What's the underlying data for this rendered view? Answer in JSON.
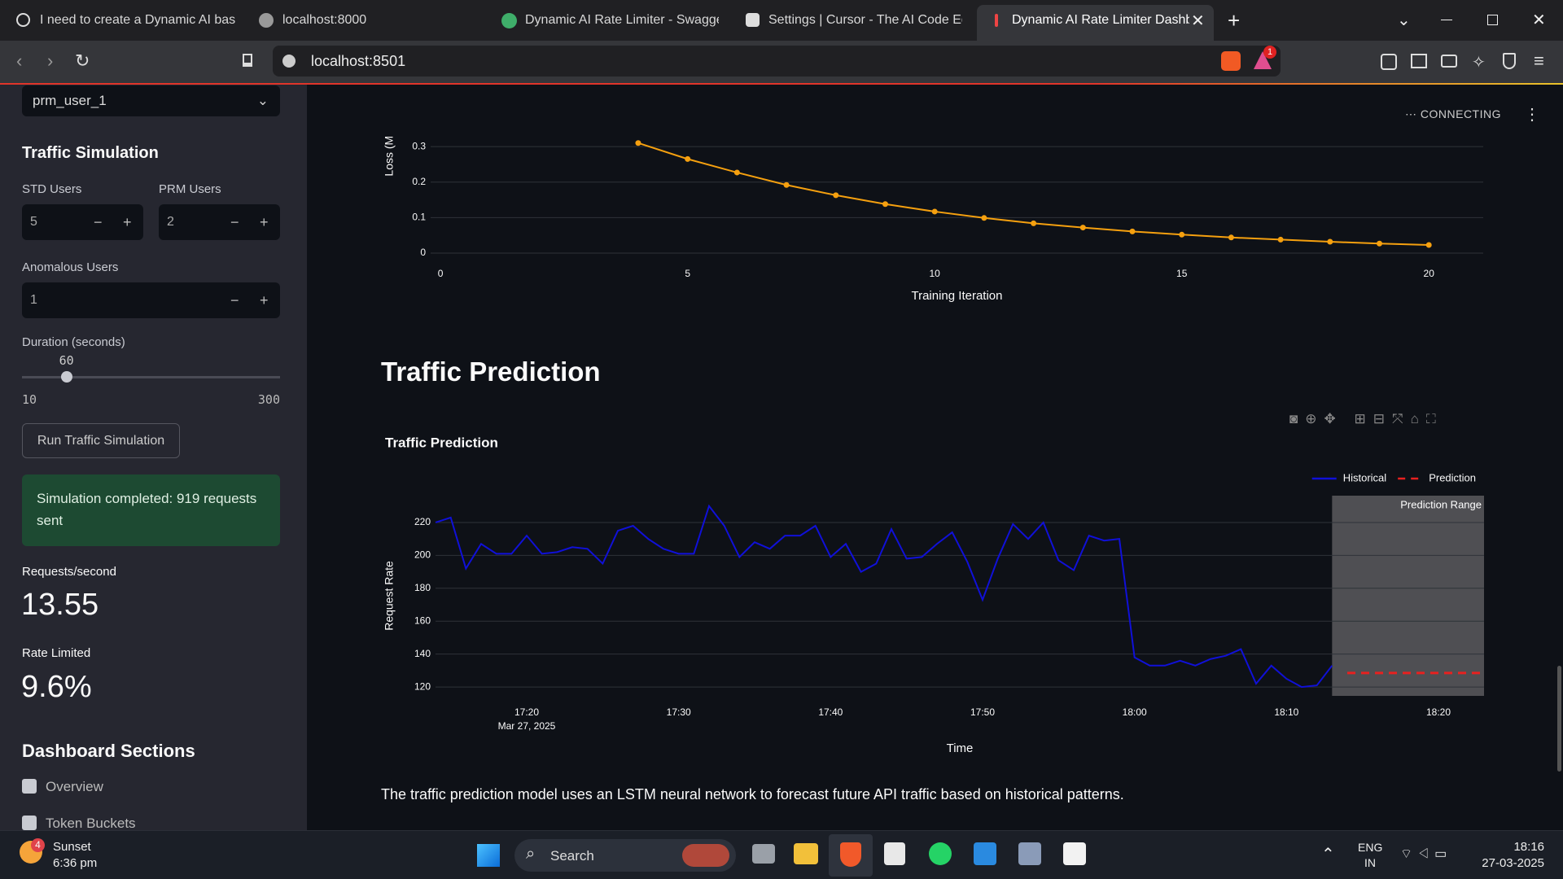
{
  "browser": {
    "tabs": [
      "I need to create a Dynamic AI based",
      "localhost:8000",
      "Dynamic AI Rate Limiter - Swagger",
      "Settings | Cursor - The AI Code Edit",
      "Dynamic AI Rate Limiter Dashb"
    ],
    "address": "localhost:8501",
    "shield_badge": 1
  },
  "sidebar": {
    "user_select": "prm_user_1",
    "section_title": "Traffic Simulation",
    "std_label": "STD Users",
    "std_value": 5,
    "prm_label": "PRM Users",
    "prm_value": 2,
    "anomalous_label": "Anomalous Users",
    "anomalous_value": 1,
    "duration_label": "Duration (seconds)",
    "duration_value": 60,
    "duration_min": 10,
    "duration_max": 300,
    "run_button": "Run Traffic Simulation",
    "success_message": "Simulation completed: 919 requests sent",
    "rps_label": "Requests/second",
    "rps_value": 13.55,
    "rate_limited_label": "Rate Limited",
    "rate_limited_value": "9.6%",
    "sections_title": "Dashboard Sections",
    "sections": [
      "Overview",
      "Token Buckets"
    ]
  },
  "header": {
    "status": "CONNECTING"
  },
  "loss_chart": {
    "type": "line",
    "xlabel": "Training Iteration",
    "ylabel": "Loss (MAE)",
    "x": [
      4,
      5,
      6,
      7,
      8,
      9,
      10,
      11,
      12,
      13,
      14,
      15,
      16,
      17,
      18,
      19,
      20
    ],
    "values": [
      0.31,
      0.265,
      0.227,
      0.192,
      0.163,
      0.138,
      0.117,
      0.099,
      0.084,
      0.072,
      0.061,
      0.052,
      0.044,
      0.038,
      0.032,
      0.027,
      0.023
    ],
    "color": "#f5a00f",
    "xlim": [
      -0.2,
      21.1
    ],
    "ylim": [
      0,
      0.33
    ],
    "xticks": [
      0,
      5,
      10,
      15,
      20
    ],
    "yticks": [
      0,
      0.1,
      0.2,
      0.3
    ],
    "grid": true
  },
  "section_title": "Traffic Prediction",
  "traffic_chart": {
    "type": "line",
    "title": "Traffic Prediction",
    "xlabel": "Time",
    "ylabel": "Request Rate",
    "series": [
      {
        "name": "Historical",
        "color": "#1010d8",
        "dash": false,
        "x": [
          "17:14",
          "17:15",
          "17:16",
          "17:17",
          "17:18",
          "17:19",
          "17:20",
          "17:21",
          "17:22",
          "17:23",
          "17:24",
          "17:25",
          "17:26",
          "17:27",
          "17:28",
          "17:29",
          "17:30",
          "17:31",
          "17:32",
          "17:33",
          "17:34",
          "17:35",
          "17:36",
          "17:37",
          "17:38",
          "17:39",
          "17:40",
          "17:41",
          "17:42",
          "17:43",
          "17:44",
          "17:45",
          "17:46",
          "17:47",
          "17:48",
          "17:49",
          "17:50",
          "17:51",
          "17:52",
          "17:53",
          "17:54",
          "17:55",
          "17:56",
          "17:57",
          "17:58",
          "17:59",
          "18:00",
          "18:01",
          "18:02",
          "18:03",
          "18:04",
          "18:05",
          "18:06",
          "18:07",
          "18:08",
          "18:09",
          "18:10",
          "18:11",
          "18:12",
          "18:13"
        ],
        "values": [
          220,
          223,
          192,
          207,
          201,
          201,
          212,
          201,
          202,
          205,
          204,
          195,
          215,
          218,
          210,
          204,
          201,
          201,
          230,
          218,
          199,
          208,
          204,
          212,
          212,
          218,
          199,
          207,
          190,
          195,
          216,
          198,
          199,
          207,
          214,
          196,
          173,
          198,
          219,
          210,
          220,
          197,
          191,
          212,
          209,
          210,
          138,
          133,
          133,
          136,
          133,
          137,
          139,
          143,
          122,
          133,
          125,
          120,
          121,
          133
        ]
      },
      {
        "name": "Prediction",
        "color": "#e8211f",
        "dash": true,
        "x": [
          "18:14",
          "18:15",
          "18:16",
          "18:17",
          "18:18",
          "18:19",
          "18:20",
          "18:21",
          "18:22",
          "18:23"
        ],
        "values": [
          128.5,
          128.5,
          128.5,
          128.5,
          128.5,
          128.5,
          128.5,
          128.5,
          128.5,
          128.5
        ]
      }
    ],
    "shaded_region": {
      "x0": "18:13",
      "x1": "18:23",
      "label": "Prediction Range",
      "color": "#5a5b5e"
    },
    "xlim": [
      "17:14",
      "18:23"
    ],
    "ylim": [
      114.6,
      236.3
    ],
    "xticks": [
      "17:20",
      "17:30",
      "17:40",
      "17:50",
      "18:00",
      "18:10",
      "18:20"
    ],
    "xtick_date": "Mar 27, 2025",
    "yticks": [
      120,
      140,
      160,
      180,
      200,
      220
    ],
    "grid": true,
    "legend": "top-right"
  },
  "description": "The traffic prediction model uses an LSTM neural network to forecast future API traffic based on historical patterns.",
  "taskbar": {
    "weather_badge": 4,
    "weather_title": "Sunset",
    "weather_time": "6:36 pm",
    "search": "Search",
    "language": "ENG",
    "region": "IN",
    "time": "18:16",
    "date": "27-03-2025"
  }
}
